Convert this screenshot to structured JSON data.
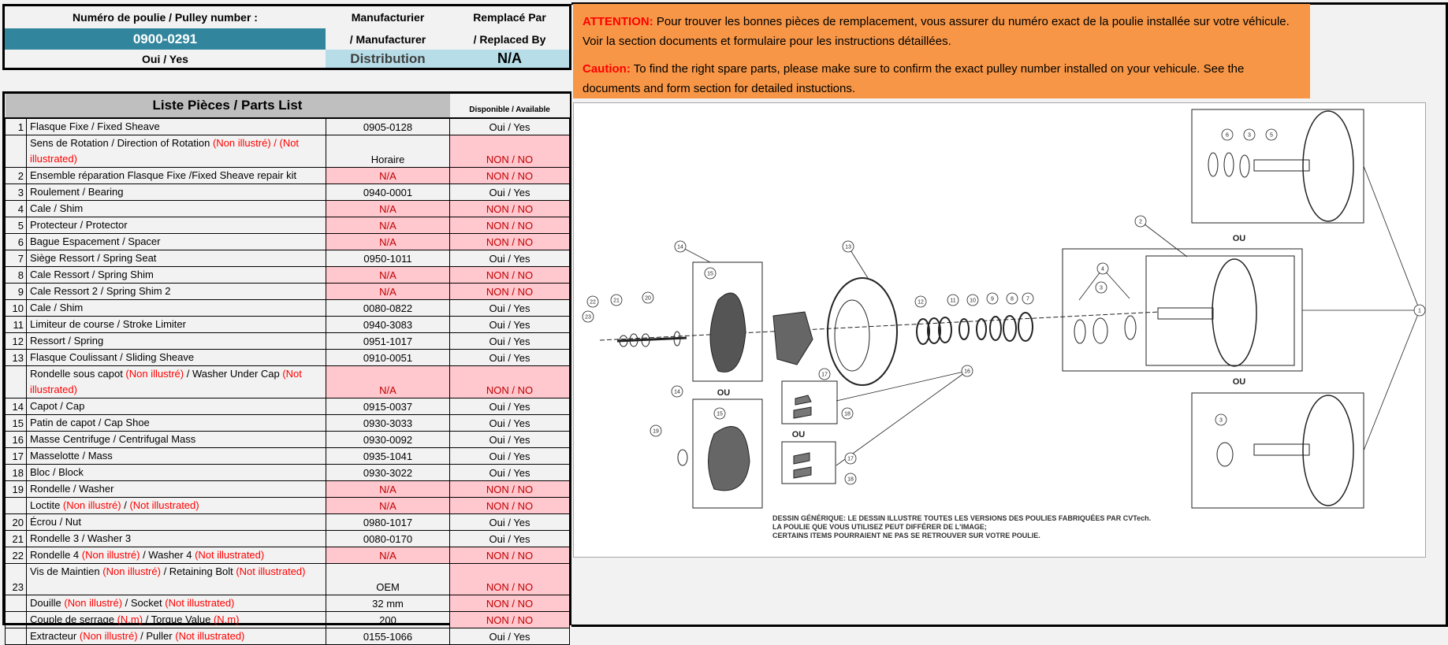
{
  "header": {
    "pulley_label": "Numéro de poulie / Pulley number :",
    "pulley_number": "0900-0291",
    "pulley_available": "Oui / Yes",
    "manufacturer_label_1": "Manufacturier",
    "manufacturer_label_2": "/ Manufacturer",
    "manufacturer_value": "Distribution",
    "replaced_label_1": "Remplacé Par",
    "replaced_label_2": "/ Replaced By",
    "replaced_value": "N/A"
  },
  "colors": {
    "pulley_number_bg": "#31859c",
    "manufacturer_bg": "#b7dee8",
    "warning_bg": "#f79646",
    "unavailable_bg": "#ffc7ce",
    "unavailable_text": "#c00000",
    "not_illustrated_text": "#ff0000"
  },
  "warning": {
    "fr_label": "ATTENTION:",
    "fr_text": " Pour trouver les bonnes pièces de remplacement, vous assurer du numéro exact de la poulie installée sur votre véhicule. Voir la section documents et formulaire pour les instructions détaillées.",
    "en_label": "Caution:",
    "en_text": " To find the right spare parts, please make sure to confirm the exact pulley number installed on your vehicule. See the documents and form section for detailed instuctions."
  },
  "parts_list": {
    "title": "Liste Pièces / Parts List",
    "available_header": "Disponible / Available",
    "rows": [
      {
        "num": "1",
        "desc": [
          [
            "Flasque Fixe / Fixed Sheave",
            0
          ]
        ],
        "pn": "0905-0128",
        "avail": "Oui / Yes"
      },
      {
        "num": "",
        "desc": [
          [
            "Sens de Rotation / Direction of Rotation  ",
            0
          ],
          [
            "(Non illustré) / (Not illustrated)",
            1
          ]
        ],
        "pn": "Horaire",
        "avail": "NON / NO",
        "tall": true
      },
      {
        "num": "2",
        "desc": [
          [
            "Ensemble réparation Flasque Fixe /Fixed Sheave repair kit",
            0
          ]
        ],
        "pn": "N/A",
        "avail": "NON / NO"
      },
      {
        "num": "3",
        "desc": [
          [
            "Roulement / Bearing",
            0
          ]
        ],
        "pn": "0940-0001",
        "avail": "Oui / Yes"
      },
      {
        "num": "4",
        "desc": [
          [
            "Cale / Shim",
            0
          ]
        ],
        "pn": "N/A",
        "avail": "NON / NO"
      },
      {
        "num": "5",
        "desc": [
          [
            "Protecteur / Protector",
            0
          ]
        ],
        "pn": "N/A",
        "avail": "NON / NO"
      },
      {
        "num": "6",
        "desc": [
          [
            "Bague Espacement / Spacer",
            0
          ]
        ],
        "pn": "N/A",
        "avail": "NON / NO"
      },
      {
        "num": "7",
        "desc": [
          [
            "Siège Ressort / Spring Seat",
            0
          ]
        ],
        "pn": "0950-1011",
        "avail": "Oui / Yes"
      },
      {
        "num": "8",
        "desc": [
          [
            "Cale Ressort / Spring Shim",
            0
          ]
        ],
        "pn": "N/A",
        "avail": "NON / NO"
      },
      {
        "num": "9",
        "desc": [
          [
            "Cale Ressort 2 / Spring Shim 2",
            0
          ]
        ],
        "pn": "N/A",
        "avail": "NON / NO"
      },
      {
        "num": "10",
        "desc": [
          [
            "Cale / Shim",
            0
          ]
        ],
        "pn": "0080-0822",
        "avail": "Oui / Yes"
      },
      {
        "num": "11",
        "desc": [
          [
            "Limiteur de course / Stroke Limiter",
            0
          ]
        ],
        "pn": "0940-3083",
        "avail": "Oui / Yes"
      },
      {
        "num": "12",
        "desc": [
          [
            "Ressort / Spring",
            0
          ]
        ],
        "pn": "0951-1017",
        "avail": "Oui / Yes"
      },
      {
        "num": "13",
        "desc": [
          [
            "Flasque Coulissant / Sliding Sheave",
            0
          ]
        ],
        "pn": "0910-0051",
        "avail": "Oui / Yes"
      },
      {
        "num": "",
        "desc": [
          [
            "Rondelle sous capot ",
            0
          ],
          [
            "(Non illustré)",
            1
          ],
          [
            " / Washer Under Cap ",
            0
          ],
          [
            "(Not illustrated)",
            1
          ]
        ],
        "pn": "N/A",
        "avail": "NON / NO",
        "tall": true
      },
      {
        "num": "14",
        "desc": [
          [
            "Capot / Cap",
            0
          ]
        ],
        "pn": "0915-0037",
        "avail": "Oui / Yes"
      },
      {
        "num": "15",
        "desc": [
          [
            "Patin de capot / Cap Shoe",
            0
          ]
        ],
        "pn": "0930-3033",
        "avail": "Oui / Yes"
      },
      {
        "num": "16",
        "desc": [
          [
            "Masse Centrifuge / Centrifugal Mass",
            0
          ]
        ],
        "pn": "0930-0092",
        "avail": "Oui / Yes"
      },
      {
        "num": "17",
        "desc": [
          [
            "Masselotte / Mass",
            0
          ]
        ],
        "pn": "0935-1041",
        "avail": "Oui / Yes"
      },
      {
        "num": "18",
        "desc": [
          [
            "Bloc / Block",
            0
          ]
        ],
        "pn": "0930-3022",
        "avail": "Oui / Yes"
      },
      {
        "num": "19",
        "desc": [
          [
            "Rondelle / Washer",
            0
          ]
        ],
        "pn": "N/A",
        "avail": "NON / NO"
      },
      {
        "num": "",
        "desc": [
          [
            "Loctite ",
            0
          ],
          [
            "(Non illustré)",
            1
          ],
          [
            " / ",
            0
          ],
          [
            "(Not illustrated)",
            1
          ]
        ],
        "pn": "N/A",
        "avail": "NON / NO"
      },
      {
        "num": "20",
        "desc": [
          [
            "Écrou / Nut",
            0
          ]
        ],
        "pn": "0980-1017",
        "avail": "Oui / Yes"
      },
      {
        "num": "21",
        "desc": [
          [
            "Rondelle 3 / Washer 3",
            0
          ]
        ],
        "pn": "0080-0170",
        "avail": "Oui / Yes"
      },
      {
        "num": "22",
        "desc": [
          [
            "Rondelle 4 ",
            0
          ],
          [
            "(Non illustré)",
            1
          ],
          [
            " / Washer 4 ",
            0
          ],
          [
            "(Not illustrated)",
            1
          ]
        ],
        "pn": "N/A",
        "avail": "NON / NO"
      },
      {
        "num": "23",
        "desc": [
          [
            "Vis de Maintien ",
            0
          ],
          [
            "(Non illustré)",
            1
          ],
          [
            " / Retaining Bolt ",
            0
          ],
          [
            "(Not illustrated)",
            1
          ]
        ],
        "pn": "OEM",
        "avail": "NON / NO",
        "tall": true
      },
      {
        "num": "",
        "desc": [
          [
            "Douille ",
            0
          ],
          [
            "(Non illustré)",
            1
          ],
          [
            " / Socket ",
            0
          ],
          [
            "(Not illustrated)",
            1
          ]
        ],
        "pn": "32 mm",
        "avail": "NON / NO"
      },
      {
        "num": "",
        "desc": [
          [
            "Couple de serrage ",
            0
          ],
          [
            "(N.m)",
            1
          ],
          [
            " / Torque Value ",
            0
          ],
          [
            "(N.m)",
            1
          ]
        ],
        "pn": "200",
        "avail": "NON / NO"
      },
      {
        "num": "",
        "desc": [
          [
            "Extracteur ",
            0
          ],
          [
            "(Non illustré)",
            1
          ],
          [
            " / Puller ",
            0
          ],
          [
            "(Not illustrated)",
            1
          ]
        ],
        "pn": "0155-1066",
        "avail": "Oui / Yes"
      }
    ]
  },
  "diagram": {
    "or_label": "OU",
    "callouts": [
      "1",
      "2",
      "3",
      "4",
      "5",
      "6",
      "7",
      "8",
      "9",
      "10",
      "11",
      "12",
      "13",
      "14",
      "15",
      "16",
      "17",
      "18",
      "19",
      "20",
      "21",
      "22",
      "23"
    ],
    "caption_1": "DESSIN GÉNÉRIQUE: LE DESSIN ILLUSTRE TOUTES LES VERSIONS DES POULIES FABRIQUÉES PAR CVTech.",
    "caption_2": "LA POULIE QUE VOUS UTILISEZ PEUT DIFFÉRER DE L'IMAGE;",
    "caption_3": "CERTAINS ITEMS POURRAIENT NE PAS SE RETROUVER SUR VOTRE POULIE."
  }
}
